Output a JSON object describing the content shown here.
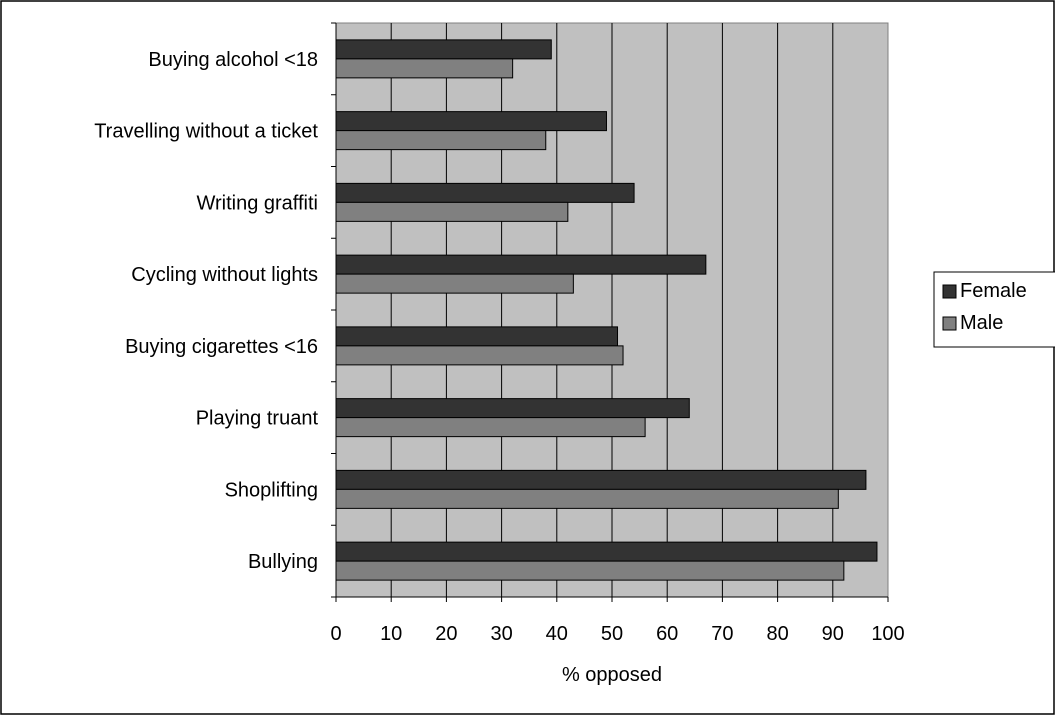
{
  "chart_data": {
    "type": "bar",
    "orientation": "horizontal",
    "categories": [
      "Buying alcohol <18",
      "Travelling without a ticket",
      "Writing graffiti",
      "Cycling without lights",
      "Buying cigarettes <16",
      "Playing truant",
      "Shoplifting",
      "Bullying"
    ],
    "series": [
      {
        "name": "Female",
        "color": "#333333",
        "values": [
          39,
          49,
          54,
          67,
          51,
          64,
          96,
          98
        ]
      },
      {
        "name": "Male",
        "color": "#808080",
        "values": [
          32,
          38,
          42,
          43,
          52,
          56,
          91,
          92
        ]
      }
    ],
    "title": "",
    "xlabel": "% opposed",
    "ylabel": "",
    "xlim": [
      0,
      100
    ],
    "xticks": [
      0,
      10,
      20,
      30,
      40,
      50,
      60,
      70,
      80,
      90,
      100
    ],
    "plot_background": "#c0c0c0",
    "grid": "vertical",
    "legend": "right"
  }
}
